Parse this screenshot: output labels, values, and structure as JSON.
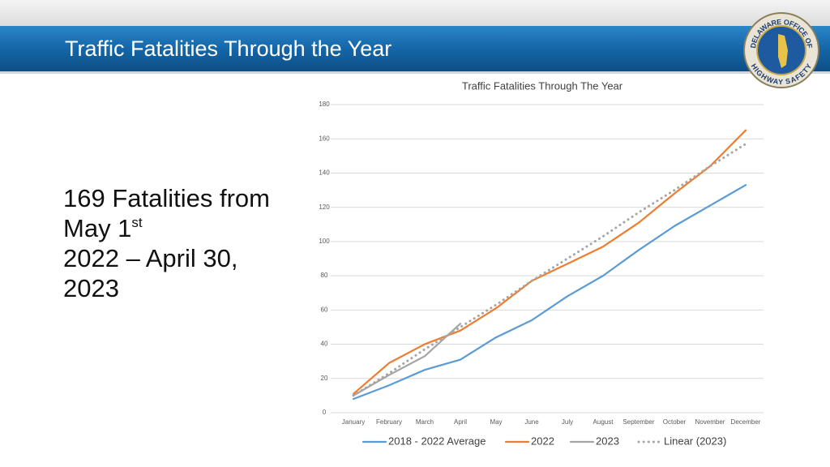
{
  "slide": {
    "title": "Traffic Fatalities Through the Year",
    "logo": {
      "top": "DELAWARE OFFICE OF",
      "bottom": "HIGHWAY SAFETY"
    },
    "text": {
      "main": "169 Fatalities from May 1",
      "superscript": "st",
      "rest": "2022 – April 30, 2023"
    }
  },
  "chart_data": {
    "type": "line",
    "title": "Traffic Fatalities Through The Year",
    "categories": [
      "January",
      "February",
      "March",
      "April",
      "May",
      "June",
      "July",
      "August",
      "September",
      "October",
      "November",
      "December"
    ],
    "series": [
      {
        "name": "2018 - 2022 Average",
        "color": "#5b9bd5",
        "style": "solid",
        "values": [
          8,
          16,
          25,
          31,
          44,
          54,
          68,
          80,
          95,
          109,
          121,
          133
        ]
      },
      {
        "name": "2022",
        "color": "#ed7d31",
        "style": "solid",
        "values": [
          11,
          29,
          40,
          48,
          61,
          77,
          87,
          97,
          111,
          128,
          144,
          165
        ]
      },
      {
        "name": "2023",
        "color": "#a5a5a5",
        "style": "solid",
        "values": [
          10,
          22,
          33,
          52,
          null,
          null,
          null,
          null,
          null,
          null,
          null,
          null
        ]
      },
      {
        "name": "Linear (2023)",
        "color": "#a5a5a5",
        "style": "dotted",
        "values": [
          10,
          23,
          37,
          50,
          63,
          77,
          90,
          103,
          117,
          130,
          144,
          157
        ]
      }
    ],
    "ylim": [
      0,
      180
    ],
    "yticks": [
      0,
      20,
      40,
      60,
      80,
      100,
      120,
      140,
      160,
      180
    ],
    "grid": true,
    "legend": "bottom"
  }
}
